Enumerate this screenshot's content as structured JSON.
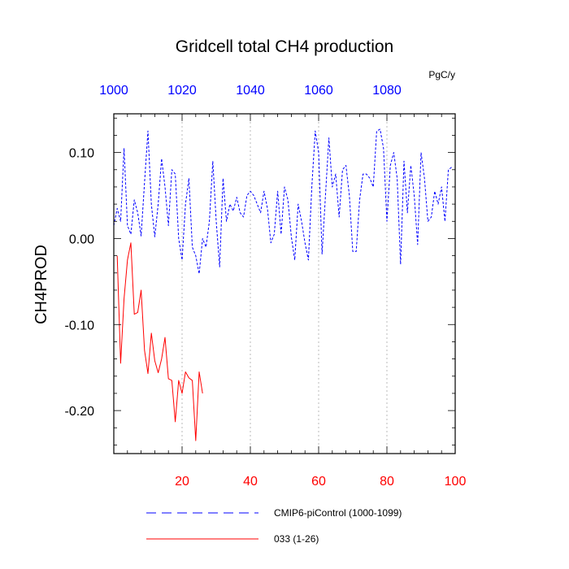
{
  "chart_data": {
    "type": "line",
    "title": "Gridcell total CH4 production",
    "units": "PgC/y",
    "ylabel": "CH4PROD",
    "xlim": [
      0,
      100
    ],
    "ylim": [
      -0.25,
      0.145
    ],
    "top_xlim": [
      1000,
      1100
    ],
    "grid": "vertical dashed",
    "bottom_ticks": [
      {
        "value": 20,
        "label": "20"
      },
      {
        "value": 40,
        "label": "40"
      },
      {
        "value": 60,
        "label": "60"
      },
      {
        "value": 80,
        "label": "80"
      },
      {
        "value": 100,
        "label": "100"
      }
    ],
    "top_ticks": [
      {
        "value": 1000,
        "label": "1000"
      },
      {
        "value": 1020,
        "label": "1020"
      },
      {
        "value": 1040,
        "label": "1040"
      },
      {
        "value": 1060,
        "label": "1060"
      },
      {
        "value": 1080,
        "label": "1080"
      }
    ],
    "y_ticks": [
      {
        "value": 0.1,
        "label": "0.10"
      },
      {
        "value": 0.0,
        "label": "0.00"
      },
      {
        "value": -0.1,
        "label": "-0.10"
      },
      {
        "value": -0.2,
        "label": "-0.20"
      }
    ],
    "colors": {
      "bottom_axis": "#ff0000",
      "top_axis": "#0000ff",
      "series_control": "#0000ff",
      "series_033": "#ff0000"
    },
    "series": [
      {
        "name": "CMIP6-piControl (1000-1099)",
        "color": "#0000ff",
        "style": "dashed",
        "x": [
          1000,
          1001,
          1002,
          1003,
          1004,
          1005,
          1006,
          1007,
          1008,
          1009,
          1010,
          1011,
          1012,
          1013,
          1014,
          1015,
          1016,
          1017,
          1018,
          1019,
          1020,
          1021,
          1022,
          1023,
          1024,
          1025,
          1026,
          1027,
          1028,
          1029,
          1030,
          1031,
          1032,
          1033,
          1034,
          1035,
          1036,
          1037,
          1038,
          1039,
          1040,
          1041,
          1042,
          1043,
          1044,
          1045,
          1046,
          1047,
          1048,
          1049,
          1050,
          1051,
          1052,
          1053,
          1054,
          1055,
          1056,
          1057,
          1058,
          1059,
          1060,
          1061,
          1062,
          1063,
          1064,
          1065,
          1066,
          1067,
          1068,
          1069,
          1070,
          1071,
          1072,
          1073,
          1074,
          1075,
          1076,
          1077,
          1078,
          1079,
          1080,
          1081,
          1082,
          1083,
          1084,
          1085,
          1086,
          1087,
          1088,
          1089,
          1090,
          1091,
          1092,
          1093,
          1094,
          1095,
          1096,
          1097,
          1098,
          1099
        ],
        "values": [
          0.015,
          0.035,
          0.02,
          0.105,
          0.015,
          0.005,
          0.045,
          0.03,
          0.003,
          0.065,
          0.125,
          0.04,
          0.002,
          0.04,
          0.093,
          0.06,
          0.015,
          0.08,
          0.075,
          0.0,
          -0.025,
          0.04,
          0.07,
          -0.01,
          -0.02,
          -0.041,
          0.0,
          -0.01,
          0.02,
          0.09,
          0.02,
          -0.033,
          0.07,
          0.02,
          0.04,
          0.032,
          0.048,
          0.03,
          0.025,
          0.05,
          0.055,
          0.05,
          0.04,
          0.03,
          0.055,
          0.035,
          -0.005,
          0.005,
          0.055,
          0.005,
          0.06,
          0.045,
          0.002,
          -0.025,
          0.04,
          0.02,
          -0.005,
          -0.025,
          0.06,
          0.125,
          0.1,
          -0.018,
          0.05,
          0.117,
          0.06,
          0.075,
          0.025,
          0.08,
          0.085,
          0.05,
          -0.015,
          -0.015,
          0.045,
          0.075,
          0.075,
          0.07,
          0.06,
          0.125,
          0.127,
          0.105,
          0.02,
          0.085,
          0.1,
          0.07,
          -0.03,
          0.09,
          0.03,
          0.085,
          0.05,
          -0.007,
          0.1,
          0.07,
          0.02,
          0.025,
          0.055,
          0.04,
          0.06,
          0.02,
          0.08,
          0.083
        ]
      },
      {
        "name": "033 (1-26)",
        "color": "#ff0000",
        "style": "solid",
        "x": [
          1,
          2,
          3,
          4,
          5,
          6,
          7,
          8,
          9,
          10,
          11,
          12,
          13,
          14,
          15,
          16,
          17,
          18,
          19,
          20,
          21,
          22,
          23,
          24,
          25,
          26
        ],
        "values": [
          -0.02,
          -0.145,
          -0.07,
          -0.025,
          -0.005,
          -0.088,
          -0.086,
          -0.06,
          -0.13,
          -0.157,
          -0.11,
          -0.142,
          -0.156,
          -0.14,
          -0.115,
          -0.163,
          -0.165,
          -0.213,
          -0.165,
          -0.18,
          -0.155,
          -0.162,
          -0.165,
          -0.235,
          -0.155,
          -0.18
        ]
      }
    ]
  }
}
